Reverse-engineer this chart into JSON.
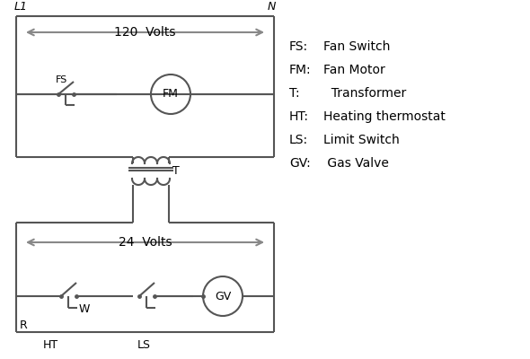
{
  "bg_color": "#ffffff",
  "line_color": "#555555",
  "arrow_color": "#888888",
  "text_color": "#000000",
  "figsize": [
    5.9,
    4.0
  ],
  "dpi": 100,
  "legend_items": [
    [
      "FS:",
      "Fan Switch"
    ],
    [
      "FM:",
      "Fan Motor"
    ],
    [
      "T:",
      "  Transformer"
    ],
    [
      "HT:",
      "Heating thermostat"
    ],
    [
      "LS:",
      "Limit Switch"
    ],
    [
      "GV:",
      " Gas Valve"
    ]
  ]
}
